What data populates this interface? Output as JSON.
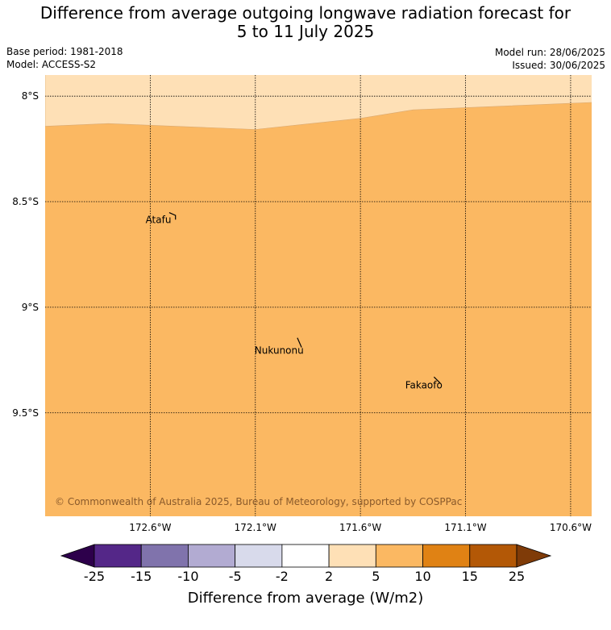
{
  "title_line1": "Difference from average outgoing longwave radiation forecast for",
  "title_line2": "5 to 11 July 2025",
  "meta_left": [
    "Base period: 1981-2018",
    "Model: ACCESS-S2"
  ],
  "meta_right": [
    "Model run: 28/06/2025",
    "Issued: 30/06/2025"
  ],
  "map": {
    "lat_range": [
      -9.99,
      -7.9
    ],
    "lon_range": [
      -173.1,
      -170.5
    ],
    "lat_ticks": [
      {
        "value": -8.0,
        "label": "8°S"
      },
      {
        "value": -8.5,
        "label": "8.5°S"
      },
      {
        "value": -9.0,
        "label": "9°S"
      },
      {
        "value": -9.5,
        "label": "9.5°S"
      }
    ],
    "lon_ticks": [
      {
        "value": -172.6,
        "label": "172.6°W"
      },
      {
        "value": -172.1,
        "label": "172.1°W"
      },
      {
        "value": -171.6,
        "label": "171.6°W"
      },
      {
        "value": -171.1,
        "label": "171.1°W"
      },
      {
        "value": -170.6,
        "label": "170.6°W"
      }
    ],
    "grid": true,
    "background_color": "#fbb862",
    "region_5_to_10": {
      "color": "#fbb862",
      "range": "5 to 10"
    },
    "region_2_to_5": {
      "color": "#fee0b6",
      "range": "2 to 5",
      "boundary": [
        [
          -173.1,
          -8.143
        ],
        [
          -172.8,
          -8.13
        ],
        [
          -172.1,
          -8.158
        ],
        [
          -171.6,
          -8.105
        ],
        [
          -171.35,
          -8.065
        ],
        [
          -170.5,
          -8.03
        ]
      ]
    },
    "places": [
      {
        "name": "Atafu",
        "lon": -172.5,
        "lat": -8.585,
        "island": [
          [
            -172.51,
            -8.552
          ],
          [
            -172.48,
            -8.565
          ],
          [
            -172.48,
            -8.585
          ]
        ]
      },
      {
        "name": "Nukunonu",
        "lon": -171.87,
        "lat": -9.205,
        "island": [
          [
            -171.9,
            -9.145
          ],
          [
            -171.88,
            -9.19
          ]
        ]
      },
      {
        "name": "Fakaofo",
        "lon": -171.21,
        "lat": -9.37,
        "island": [
          [
            -171.25,
            -9.33
          ],
          [
            -171.22,
            -9.36
          ]
        ]
      }
    ],
    "copyright": "© Commonwealth of Australia 2025, Bureau of Meteorology, supported by COSPPac"
  },
  "colorbar": {
    "title": "Difference from average (W/m2)",
    "ticks": [
      "-25",
      "-15",
      "-10",
      "-5",
      "-2",
      "2",
      "5",
      "10",
      "15",
      "25"
    ],
    "colors": [
      "#542788",
      "#8073ac",
      "#b2abd2",
      "#d8daeb",
      "#ffffff",
      "#fee0b6",
      "#fbb862",
      "#e08214",
      "#b35806"
    ],
    "under_color": "#2d004b",
    "over_color": "#7f3b08"
  }
}
